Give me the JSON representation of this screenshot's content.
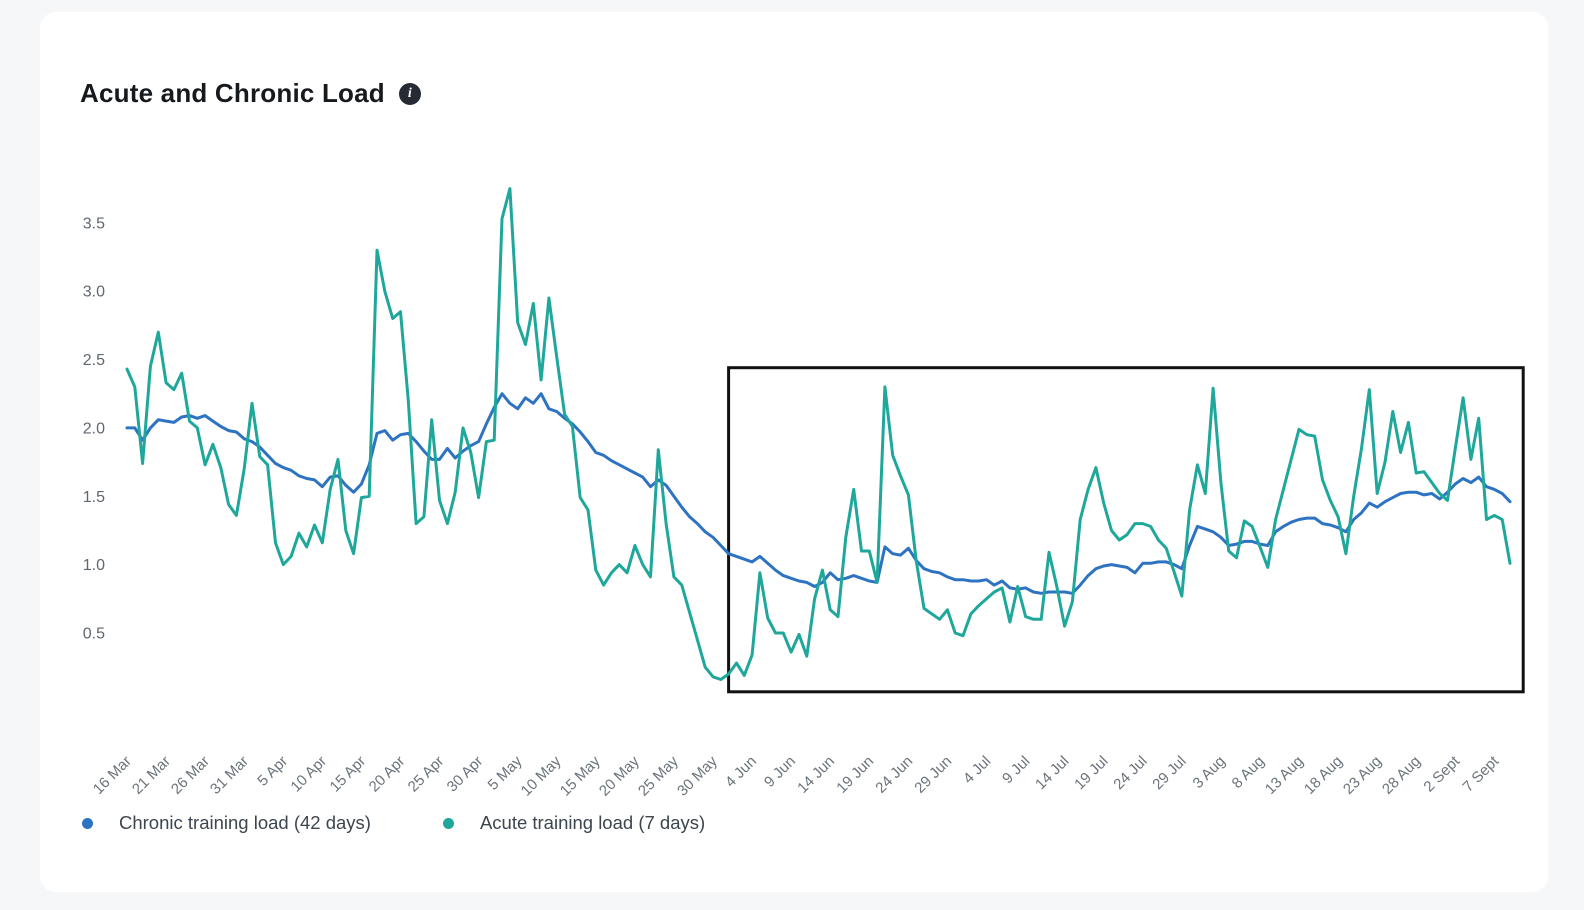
{
  "card": {
    "title": "Acute and Chronic Load",
    "info_icon_glyph": "i"
  },
  "chart_data": {
    "type": "line",
    "title": "Acute and Chronic Load",
    "xlabel": "",
    "ylabel": "",
    "grid": false,
    "legend_position": "bottom-left",
    "y_ticks": [
      "0.5",
      "1.0",
      "1.5",
      "2.0",
      "2.5",
      "3.0",
      "3.5"
    ],
    "ylim": [
      0.05,
      3.9
    ],
    "x_tick_interval_days": 5,
    "x_tick_labels": [
      "16 Mar",
      "21 Mar",
      "26 Mar",
      "31 Mar",
      "5 Apr",
      "10 Apr",
      "15 Apr",
      "20 Apr",
      "25 Apr",
      "30 Apr",
      "5 May",
      "10 May",
      "15 May",
      "20 May",
      "25 May",
      "30 May",
      "4 Jun",
      "9 Jun",
      "14 Jun",
      "19 Jun",
      "24 Jun",
      "29 Jun",
      "4 Jul",
      "9 Jul",
      "14 Jul",
      "19 Jul",
      "24 Jul",
      "29 Jul",
      "3 Aug",
      "8 Aug",
      "13 Aug",
      "18 Aug",
      "23 Aug",
      "28 Aug",
      "2 Sept",
      "7 Sept"
    ],
    "axis_label_color": "#6b737c",
    "series": [
      {
        "name": "Chronic training load (42 days)",
        "color": "#2e73c2",
        "values": [
          2.0,
          2.0,
          1.91,
          2.0,
          2.06,
          2.05,
          2.04,
          2.08,
          2.09,
          2.07,
          2.09,
          2.05,
          2.01,
          1.98,
          1.97,
          1.92,
          1.9,
          1.86,
          1.8,
          1.74,
          1.71,
          1.69,
          1.65,
          1.63,
          1.62,
          1.57,
          1.64,
          1.65,
          1.58,
          1.53,
          1.59,
          1.73,
          1.96,
          1.98,
          1.91,
          1.95,
          1.96,
          1.9,
          1.83,
          1.77,
          1.77,
          1.85,
          1.78,
          1.83,
          1.87,
          1.9,
          2.03,
          2.15,
          2.25,
          2.18,
          2.14,
          2.22,
          2.18,
          2.25,
          2.14,
          2.12,
          2.07,
          2.03,
          1.97,
          1.9,
          1.82,
          1.8,
          1.76,
          1.73,
          1.7,
          1.67,
          1.64,
          1.57,
          1.62,
          1.58,
          1.5,
          1.42,
          1.35,
          1.3,
          1.24,
          1.2,
          1.14,
          1.08,
          1.06,
          1.04,
          1.02,
          1.06,
          1.01,
          0.96,
          0.92,
          0.9,
          0.88,
          0.87,
          0.84,
          0.87,
          0.94,
          0.89,
          0.9,
          0.92,
          0.9,
          0.88,
          0.87,
          1.13,
          1.08,
          1.07,
          1.12,
          1.03,
          0.97,
          0.95,
          0.94,
          0.91,
          0.89,
          0.89,
          0.88,
          0.88,
          0.89,
          0.85,
          0.88,
          0.83,
          0.82,
          0.83,
          0.8,
          0.79,
          0.8,
          0.8,
          0.8,
          0.79,
          0.85,
          0.92,
          0.97,
          0.99,
          1.0,
          0.99,
          0.98,
          0.94,
          1.01,
          1.01,
          1.02,
          1.02,
          1.0,
          0.97,
          1.14,
          1.28,
          1.26,
          1.24,
          1.2,
          1.14,
          1.15,
          1.17,
          1.17,
          1.15,
          1.14,
          1.24,
          1.28,
          1.31,
          1.33,
          1.34,
          1.34,
          1.3,
          1.29,
          1.27,
          1.24,
          1.33,
          1.38,
          1.45,
          1.42,
          1.46,
          1.49,
          1.52,
          1.53,
          1.53,
          1.51,
          1.52,
          1.48,
          1.53,
          1.59,
          1.63,
          1.6,
          1.64,
          1.57,
          1.55,
          1.52,
          1.46
        ]
      },
      {
        "name": "Acute training load (7 days)",
        "color": "#1fa79b",
        "values": [
          2.43,
          2.3,
          1.74,
          2.45,
          2.7,
          2.33,
          2.28,
          2.4,
          2.05,
          2.0,
          1.73,
          1.88,
          1.71,
          1.44,
          1.36,
          1.7,
          2.18,
          1.79,
          1.73,
          1.16,
          1.0,
          1.06,
          1.23,
          1.13,
          1.29,
          1.16,
          1.55,
          1.77,
          1.25,
          1.08,
          1.49,
          1.5,
          3.3,
          3.0,
          2.8,
          2.85,
          2.2,
          1.3,
          1.35,
          2.06,
          1.47,
          1.3,
          1.53,
          2.0,
          1.82,
          1.49,
          1.9,
          1.91,
          3.53,
          3.75,
          2.77,
          2.61,
          2.91,
          2.35,
          2.95,
          2.52,
          2.1,
          2.01,
          1.49,
          1.4,
          0.96,
          0.85,
          0.94,
          1.0,
          0.94,
          1.14,
          1.0,
          0.91,
          1.84,
          1.3,
          0.91,
          0.85,
          0.65,
          0.45,
          0.25,
          0.18,
          0.16,
          0.2,
          0.28,
          0.19,
          0.34,
          0.94,
          0.61,
          0.5,
          0.5,
          0.36,
          0.49,
          0.33,
          0.75,
          0.96,
          0.67,
          0.62,
          1.2,
          1.55,
          1.1,
          1.1,
          0.87,
          2.3,
          1.8,
          1.65,
          1.51,
          1.03,
          0.68,
          0.64,
          0.6,
          0.67,
          0.5,
          0.48,
          0.64,
          0.7,
          0.75,
          0.8,
          0.83,
          0.58,
          0.84,
          0.62,
          0.6,
          0.6,
          1.09,
          0.84,
          0.55,
          0.73,
          1.33,
          1.55,
          1.71,
          1.45,
          1.25,
          1.18,
          1.22,
          1.3,
          1.3,
          1.28,
          1.18,
          1.12,
          0.95,
          0.77,
          1.4,
          1.73,
          1.52,
          2.29,
          1.6,
          1.1,
          1.05,
          1.32,
          1.28,
          1.13,
          0.98,
          1.33,
          1.55,
          1.77,
          1.99,
          1.95,
          1.94,
          1.62,
          1.47,
          1.35,
          1.08,
          1.5,
          1.85,
          2.28,
          1.52,
          1.75,
          2.12,
          1.82,
          2.04,
          1.67,
          1.68,
          1.6,
          1.52,
          1.47,
          1.85,
          2.22,
          1.77,
          2.07,
          1.33,
          1.36,
          1.33,
          1.01
        ]
      }
    ],
    "annotation_box": {
      "start_day": 77,
      "end_day": 178.7,
      "value_min": 0.07,
      "value_max": 2.44,
      "color": "#111111"
    }
  }
}
